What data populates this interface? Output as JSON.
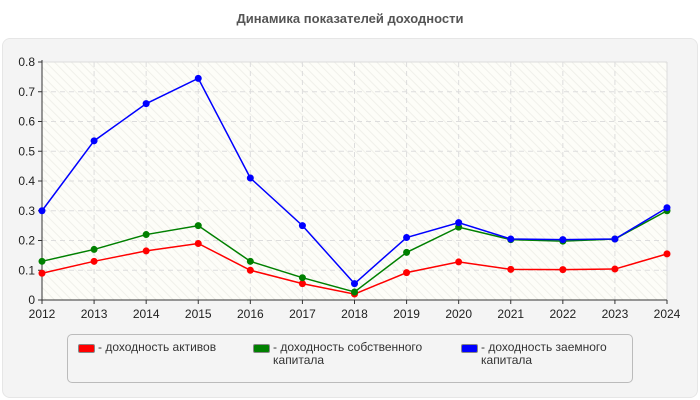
{
  "chart_data": {
    "type": "line",
    "title": "Динамика показателей доходности",
    "xlabel": "",
    "ylabel": "",
    "x": [
      "2012",
      "2013",
      "2014",
      "2015",
      "2016",
      "2017",
      "2018",
      "2019",
      "2020",
      "2021",
      "2022",
      "2023",
      "2024"
    ],
    "ylim": [
      0,
      0.8
    ],
    "yticks": [
      "0",
      "0.1",
      "0.2",
      "0.3",
      "0.4",
      "0.5",
      "0.6",
      "0.7",
      "0.8"
    ],
    "grid": true,
    "legend_placement": "bottom",
    "series": [
      {
        "name": "- доходность активов",
        "color": "#ff0000",
        "values": [
          0.09,
          0.13,
          0.165,
          0.19,
          0.1,
          0.055,
          0.02,
          0.092,
          0.128,
          0.103,
          0.102,
          0.104,
          0.155
        ]
      },
      {
        "name": "- доходность собственного капитала",
        "color": "#008000",
        "values": [
          0.13,
          0.17,
          0.22,
          0.25,
          0.13,
          0.075,
          0.027,
          0.16,
          0.245,
          0.203,
          0.198,
          0.205,
          0.3
        ]
      },
      {
        "name": "- доходность заемного капитала",
        "color": "#0000ff",
        "values": [
          0.3,
          0.535,
          0.66,
          0.745,
          0.41,
          0.25,
          0.055,
          0.21,
          0.26,
          0.205,
          0.203,
          0.205,
          0.31
        ]
      }
    ]
  }
}
